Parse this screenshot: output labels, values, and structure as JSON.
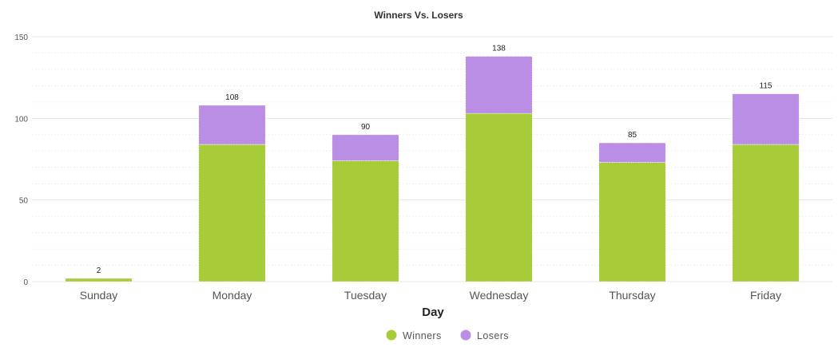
{
  "chart_data": {
    "type": "bar",
    "stacked": true,
    "title": "Winners Vs. Losers",
    "xlabel": "Day",
    "ylabel": "",
    "ylim": [
      0,
      150
    ],
    "yticks": [
      0,
      50,
      100,
      150
    ],
    "grid": true,
    "legend_position": "bottom-center",
    "categories": [
      "Sunday",
      "Monday",
      "Tuesday",
      "Wednesday",
      "Thursday",
      "Friday"
    ],
    "series": [
      {
        "name": "Winners",
        "color": "#a8cb3a",
        "values": [
          2,
          84,
          74,
          103,
          73,
          84
        ]
      },
      {
        "name": "Losers",
        "color": "#bb8ee6",
        "values": [
          0,
          24,
          16,
          35,
          12,
          31
        ]
      }
    ],
    "totals": [
      "2",
      "108",
      "90",
      "138",
      "85",
      "115"
    ]
  }
}
